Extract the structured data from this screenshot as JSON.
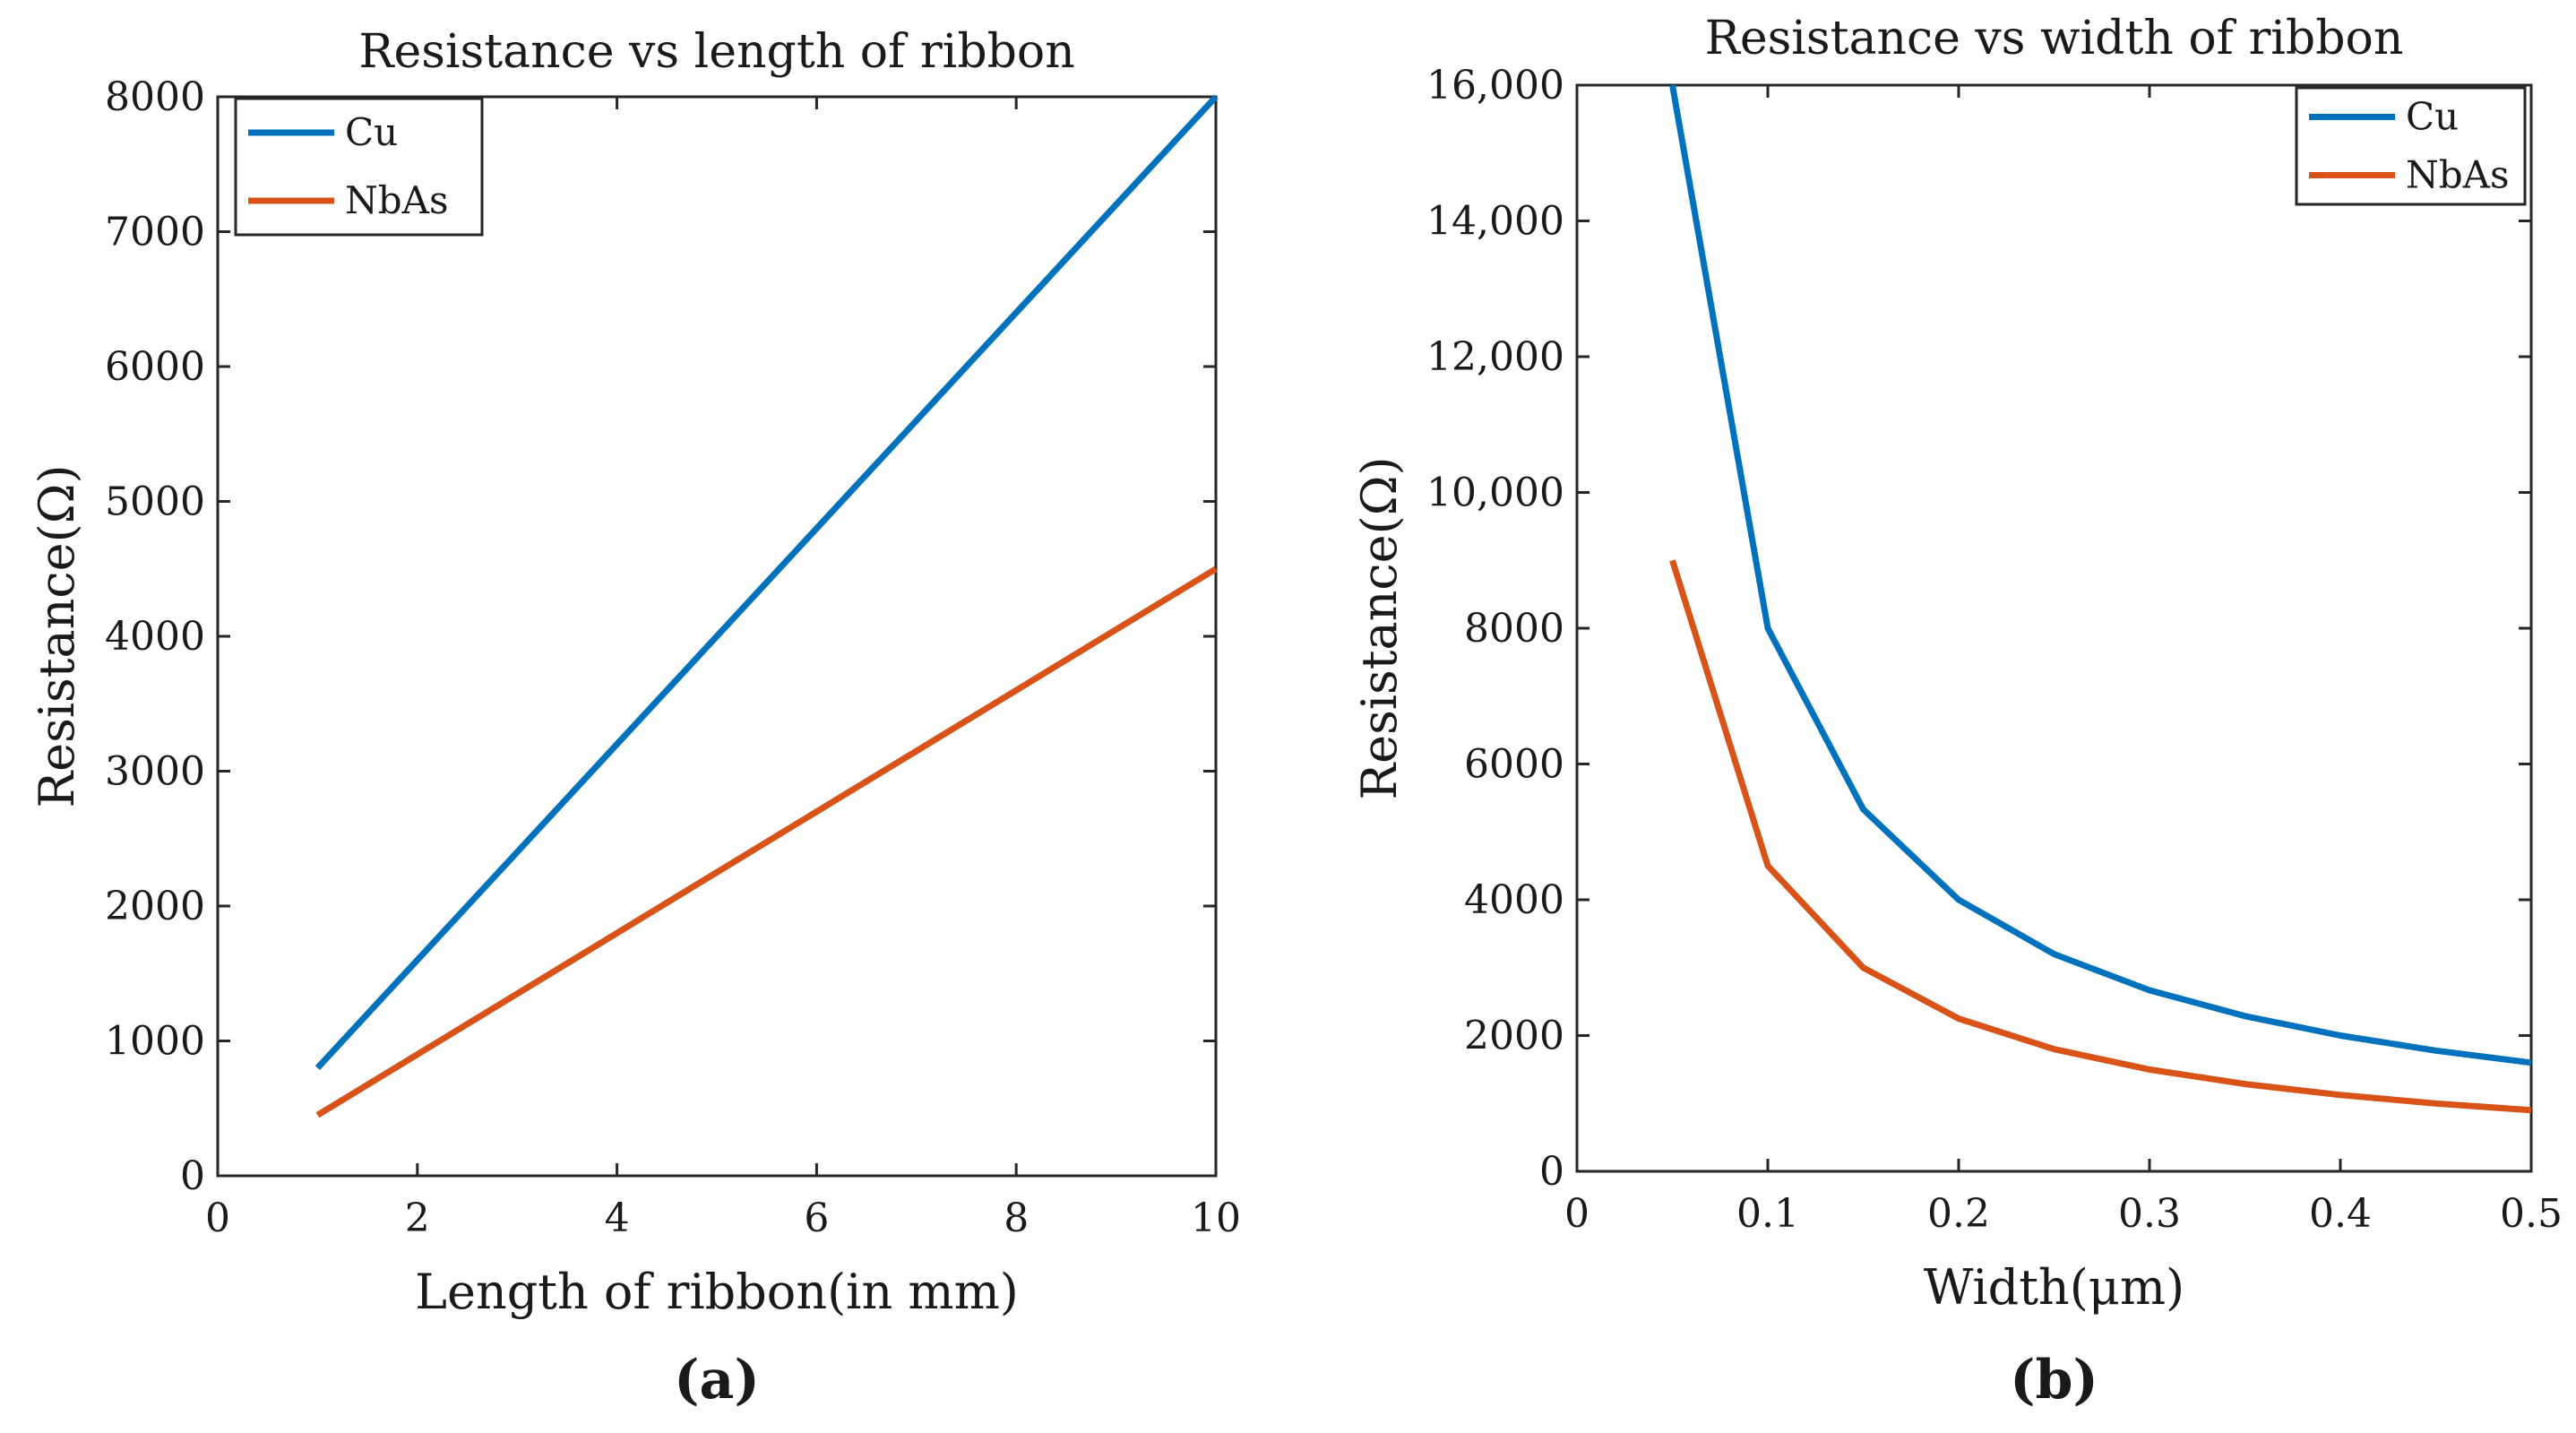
{
  "chart_data": [
    {
      "type": "line",
      "panel_label": "(a)",
      "panel_letter": "a",
      "title": "Resistance vs length of ribbon",
      "xlabel": "Length of ribbon(in mm)",
      "ylabel": "Resistance(Ω)",
      "xlim": [
        0,
        10
      ],
      "ylim": [
        0,
        8000
      ],
      "xticks": [
        0,
        2,
        4,
        6,
        8,
        10
      ],
      "xtick_labels": [
        "0",
        "2",
        "4",
        "6",
        "8",
        "10"
      ],
      "yticks": [
        0,
        1000,
        2000,
        3000,
        4000,
        5000,
        6000,
        7000,
        8000
      ],
      "ytick_labels": [
        "0",
        "1000",
        "2000",
        "3000",
        "4000",
        "5000",
        "6000",
        "7000",
        "8000"
      ],
      "grid": false,
      "legend": "top-left",
      "series": [
        {
          "name": "Cu",
          "color": "#0072BD",
          "x": [
            1,
            10
          ],
          "y": [
            800,
            8000
          ]
        },
        {
          "name": "NbAs",
          "color": "#D95319",
          "x": [
            1,
            10
          ],
          "y": [
            450,
            4500
          ]
        }
      ]
    },
    {
      "type": "line",
      "panel_label": "(b)",
      "panel_letter": "b",
      "title": "Resistance vs width of ribbon",
      "xlabel": "Width(μm)",
      "ylabel": "Resistance(Ω)",
      "xlim": [
        0,
        0.5
      ],
      "ylim": [
        0,
        16000
      ],
      "xticks": [
        0,
        0.1,
        0.2,
        0.3,
        0.4,
        0.5
      ],
      "xtick_labels": [
        "0",
        "0.1",
        "0.2",
        "0.3",
        "0.4",
        "0.5"
      ],
      "yticks": [
        0,
        2000,
        4000,
        6000,
        8000,
        10000,
        12000,
        14000,
        16000
      ],
      "ytick_labels": [
        "0",
        "2000",
        "4000",
        "6000",
        "8000",
        "10,000",
        "12,000",
        "14,000",
        "16,000"
      ],
      "grid": false,
      "legend": "top-right",
      "series": [
        {
          "name": "Cu",
          "color": "#0072BD",
          "x": [
            0.05,
            0.1,
            0.15,
            0.2,
            0.25,
            0.3,
            0.35,
            0.4,
            0.45,
            0.5
          ],
          "y": [
            16000,
            8000,
            5333,
            4000,
            3200,
            2667,
            2286,
            2000,
            1778,
            1600
          ]
        },
        {
          "name": "NbAs",
          "color": "#D95319",
          "x": [
            0.05,
            0.1,
            0.15,
            0.2,
            0.25,
            0.3,
            0.35,
            0.4,
            0.45,
            0.5
          ],
          "y": [
            9000,
            4500,
            3000,
            2250,
            1800,
            1500,
            1286,
            1125,
            1000,
            900
          ]
        }
      ]
    }
  ]
}
